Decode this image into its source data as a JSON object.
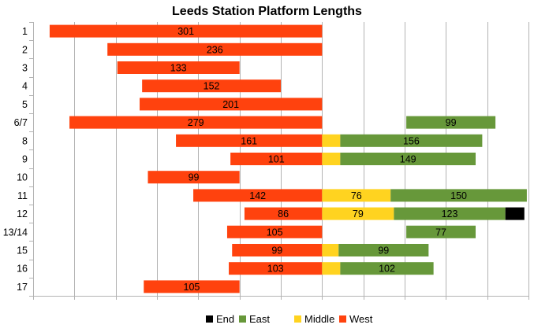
{
  "chart_data": {
    "type": "bar",
    "orientation": "horizontal",
    "stacked": true,
    "title": "Leeds Station Platform Lengths",
    "xlabel": "",
    "ylabel": "",
    "categories": [
      "1",
      "2",
      "3",
      "4",
      "5",
      "6/7",
      "8",
      "9",
      "10",
      "11",
      "12",
      "13/14",
      "15",
      "16",
      "17"
    ],
    "grid": true,
    "legend_placement": "bottom",
    "legend": [
      {
        "name": "End",
        "color": "#000000"
      },
      {
        "name": "East",
        "color": "#67983a"
      },
      {
        "name": "Middle",
        "color": "#ffd320"
      },
      {
        "name": "West",
        "color": "#ff420e"
      }
    ],
    "west": [
      {
        "start": -330,
        "end": 0,
        "label": "301"
      },
      {
        "start": -260,
        "end": 0,
        "label": "236"
      },
      {
        "start": -248,
        "end": -100,
        "label": "133"
      },
      {
        "start": -218,
        "end": -50,
        "label": "152"
      },
      {
        "start": -221,
        "end": 0,
        "label": "201"
      },
      {
        "start": -306,
        "end": 0,
        "label": "279"
      },
      {
        "start": -177,
        "end": 0,
        "label": "161"
      },
      {
        "start": -111,
        "end": 0,
        "label": "101"
      },
      {
        "start": -211,
        "end": -100,
        "label": "99"
      },
      {
        "start": -156,
        "end": 0,
        "label": "142"
      },
      {
        "start": -94,
        "end": 0,
        "label": "86"
      },
      {
        "start": -115,
        "end": 0,
        "label": "105"
      },
      {
        "start": -109,
        "end": 0,
        "label": "99"
      },
      {
        "start": -113,
        "end": 0,
        "label": "103"
      },
      {
        "start": -216,
        "end": -100,
        "label": "105"
      }
    ],
    "middle": [
      null,
      null,
      null,
      null,
      null,
      null,
      {
        "start": 0,
        "end": 22,
        "label": ""
      },
      {
        "start": 0,
        "end": 22,
        "label": ""
      },
      null,
      {
        "start": 0,
        "end": 83,
        "label": "76"
      },
      {
        "start": 0,
        "end": 87,
        "label": "79"
      },
      null,
      {
        "start": 0,
        "end": 20,
        "label": ""
      },
      {
        "start": 0,
        "end": 22,
        "label": ""
      },
      null
    ],
    "east": [
      null,
      null,
      null,
      null,
      null,
      {
        "start": 102,
        "end": 210,
        "label": "99"
      },
      {
        "start": 22,
        "end": 194,
        "label": "156"
      },
      {
        "start": 22,
        "end": 186,
        "label": "149"
      },
      null,
      {
        "start": 83,
        "end": 248,
        "label": "150"
      },
      {
        "start": 87,
        "end": 222,
        "label": "123"
      },
      {
        "start": 102,
        "end": 186,
        "label": "77"
      },
      {
        "start": 20,
        "end": 129,
        "label": "99"
      },
      {
        "start": 22,
        "end": 135,
        "label": "102"
      },
      null
    ],
    "end": [
      null,
      null,
      null,
      null,
      null,
      null,
      null,
      null,
      null,
      null,
      {
        "start": 222,
        "end": 245,
        "label": ""
      },
      null,
      null,
      null,
      null
    ],
    "xlim": [
      -350,
      250
    ],
    "xtick_step": 50
  }
}
